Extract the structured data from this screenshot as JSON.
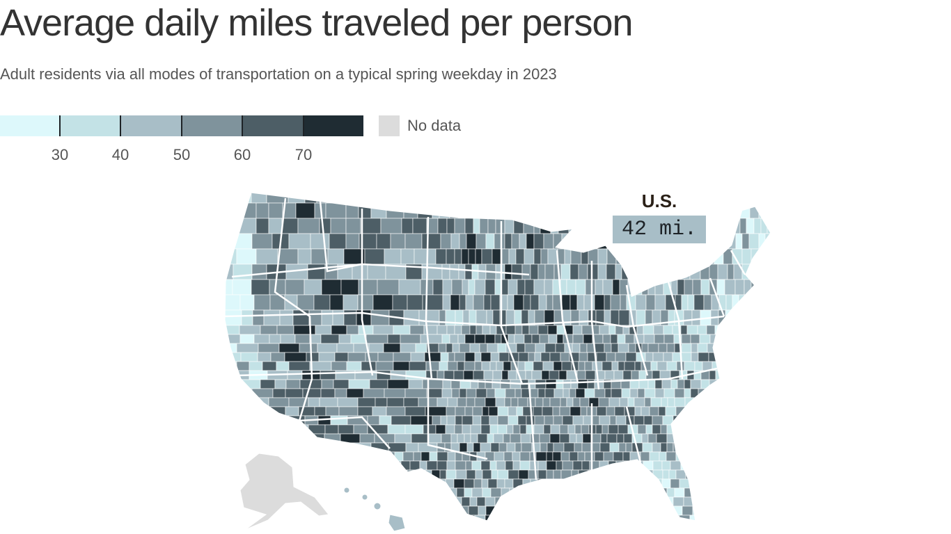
{
  "header": {
    "title": "Average daily miles traveled per person",
    "subtitle": "Adult residents via all modes of transportation on a typical spring weekday in 2023"
  },
  "legend": {
    "bins": [
      {
        "min": null,
        "max": 30,
        "color": "#ddf8fb"
      },
      {
        "min": 30,
        "max": 40,
        "color": "#c3e2e6"
      },
      {
        "min": 40,
        "max": 50,
        "color": "#a8bec7"
      },
      {
        "min": 50,
        "max": 60,
        "color": "#7f939c"
      },
      {
        "min": 60,
        "max": 70,
        "color": "#4d5e66"
      },
      {
        "min": 70,
        "max": null,
        "color": "#1f2c33"
      }
    ],
    "tick_labels": [
      "30",
      "40",
      "50",
      "60",
      "70"
    ],
    "no_data_label": "No data",
    "no_data_color": "#dcdcdc"
  },
  "national": {
    "label": "U.S.",
    "value_text": "42 mi.",
    "value": 42,
    "color": "#a8bec7"
  },
  "map": {
    "region": "United States counties",
    "border_color": "#ffffff"
  }
}
